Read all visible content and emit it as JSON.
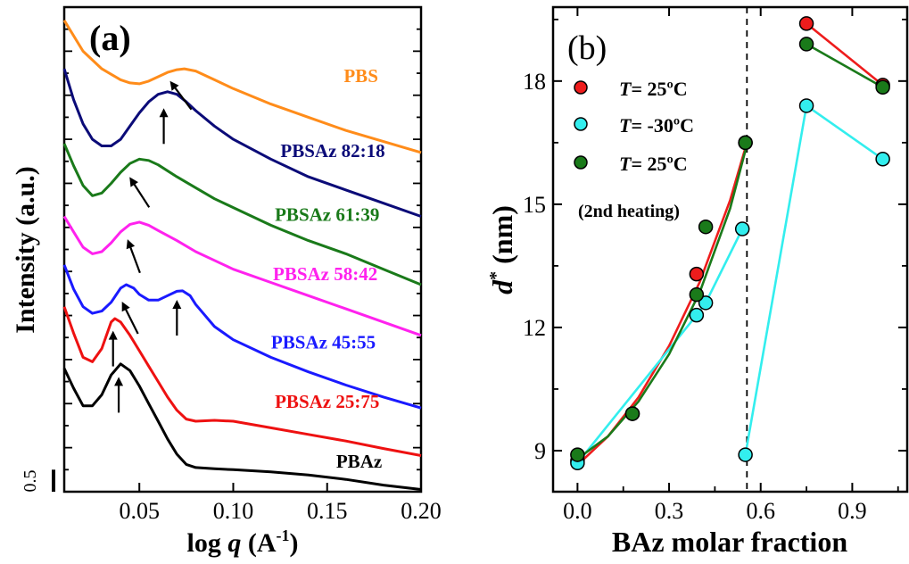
{
  "chart_data": [
    {
      "type": "line",
      "panel_label": "(a)",
      "xlabel_main": "log ",
      "xlabel_var": "q",
      "xlabel_unit": " (A",
      "xlabel_sup": "-1",
      "xlabel_close": ")",
      "ylabel": "Intensity (a.u.)",
      "xlim": [
        0.01,
        0.2
      ],
      "ylim": [
        0,
        11
      ],
      "xticks": [
        "0.05",
        "0.10",
        "0.15",
        "0.20"
      ],
      "xtick_values": [
        0.05,
        0.1,
        0.15,
        0.2
      ],
      "scale_bar_label": "0.5",
      "scale_bar_value": 0.5,
      "series": [
        {
          "name": "PBS",
          "color": "#ff8c1a",
          "x": [
            0.01,
            0.02,
            0.03,
            0.04,
            0.045,
            0.05,
            0.055,
            0.06,
            0.065,
            0.07,
            0.074,
            0.08,
            0.09,
            0.1,
            0.12,
            0.14,
            0.16,
            0.18,
            0.2
          ],
          "y": [
            10.7,
            10.0,
            9.6,
            9.35,
            9.28,
            9.26,
            9.32,
            9.42,
            9.52,
            9.58,
            9.6,
            9.55,
            9.35,
            9.15,
            8.8,
            8.5,
            8.2,
            7.95,
            7.7
          ]
        },
        {
          "name": "PBSAz 82:18",
          "color": "#0b0b78",
          "x": [
            0.01,
            0.015,
            0.02,
            0.025,
            0.03,
            0.035,
            0.04,
            0.045,
            0.05,
            0.055,
            0.06,
            0.065,
            0.07,
            0.075,
            0.08,
            0.09,
            0.1,
            0.12,
            0.14,
            0.16,
            0.18,
            0.2
          ],
          "y": [
            9.6,
            8.9,
            8.35,
            8.0,
            7.85,
            7.85,
            8.0,
            8.3,
            8.6,
            8.85,
            9.02,
            9.08,
            9.02,
            8.85,
            8.65,
            8.3,
            8.0,
            7.55,
            7.15,
            6.85,
            6.55,
            6.25
          ]
        },
        {
          "name": "PBSAz 61:39",
          "color": "#1a7a1a",
          "x": [
            0.01,
            0.015,
            0.02,
            0.025,
            0.03,
            0.035,
            0.04,
            0.045,
            0.05,
            0.055,
            0.06,
            0.07,
            0.08,
            0.09,
            0.1,
            0.12,
            0.14,
            0.16,
            0.18,
            0.2
          ],
          "y": [
            7.9,
            7.4,
            6.95,
            6.72,
            6.78,
            7.0,
            7.25,
            7.45,
            7.55,
            7.52,
            7.42,
            7.15,
            6.9,
            6.65,
            6.45,
            6.05,
            5.7,
            5.4,
            5.05,
            4.7
          ]
        },
        {
          "name": "PBSAz 58:42",
          "color": "#ff22ee",
          "x": [
            0.01,
            0.015,
            0.02,
            0.025,
            0.03,
            0.035,
            0.04,
            0.045,
            0.05,
            0.055,
            0.06,
            0.07,
            0.08,
            0.09,
            0.1,
            0.12,
            0.14,
            0.16,
            0.18,
            0.2
          ],
          "y": [
            6.25,
            5.9,
            5.55,
            5.4,
            5.45,
            5.65,
            5.9,
            6.07,
            6.12,
            6.05,
            5.93,
            5.7,
            5.45,
            5.25,
            5.05,
            4.75,
            4.45,
            4.15,
            3.85,
            3.55
          ]
        },
        {
          "name": "PBSAz 45:55",
          "color": "#1a1aff",
          "x": [
            0.01,
            0.015,
            0.02,
            0.025,
            0.03,
            0.035,
            0.04,
            0.043,
            0.047,
            0.05,
            0.055,
            0.06,
            0.065,
            0.07,
            0.073,
            0.077,
            0.08,
            0.09,
            0.1,
            0.12,
            0.14,
            0.16,
            0.18,
            0.2
          ],
          "y": [
            5.15,
            4.6,
            4.2,
            4.05,
            4.1,
            4.3,
            4.62,
            4.7,
            4.62,
            4.48,
            4.35,
            4.35,
            4.45,
            4.55,
            4.56,
            4.45,
            4.25,
            3.75,
            3.45,
            3.05,
            2.72,
            2.42,
            2.15,
            1.9
          ]
        },
        {
          "name": "PBSAz 25:75",
          "color": "#ee1111",
          "x": [
            0.01,
            0.015,
            0.02,
            0.025,
            0.03,
            0.035,
            0.037,
            0.04,
            0.045,
            0.05,
            0.055,
            0.06,
            0.065,
            0.07,
            0.075,
            0.08,
            0.09,
            0.1,
            0.12,
            0.14,
            0.16,
            0.18,
            0.2
          ],
          "y": [
            4.2,
            3.6,
            3.05,
            2.95,
            3.25,
            3.85,
            3.93,
            3.85,
            3.55,
            3.2,
            2.85,
            2.5,
            2.15,
            1.85,
            1.65,
            1.6,
            1.62,
            1.6,
            1.45,
            1.3,
            1.15,
            0.98,
            0.82
          ]
        },
        {
          "name": "PBAz",
          "color": "#000000",
          "x": [
            0.01,
            0.015,
            0.02,
            0.025,
            0.03,
            0.035,
            0.04,
            0.045,
            0.05,
            0.055,
            0.06,
            0.065,
            0.07,
            0.075,
            0.08,
            0.09,
            0.1,
            0.12,
            0.14,
            0.16,
            0.18,
            0.2
          ],
          "y": [
            2.8,
            2.35,
            1.95,
            1.95,
            2.2,
            2.65,
            2.9,
            2.75,
            2.4,
            2.0,
            1.6,
            1.2,
            0.85,
            0.62,
            0.55,
            0.52,
            0.5,
            0.45,
            0.38,
            0.28,
            0.15,
            0.05
          ]
        }
      ],
      "labels": [
        "PBS",
        "PBSAz 82:18",
        "PBSAz 61:39",
        "PBSAz 58:42",
        "PBSAz 45:55",
        "PBSAz 25:75",
        "PBAz"
      ],
      "arrows": [
        {
          "x": 0.072,
          "y": 9.0
        },
        {
          "x": 0.063,
          "y": 8.3
        },
        {
          "x": 0.05,
          "y": 6.8
        },
        {
          "x": 0.047,
          "y": 5.35
        },
        {
          "x": 0.045,
          "y": 3.95
        },
        {
          "x": 0.07,
          "y": 3.95
        },
        {
          "x": 0.036,
          "y": 3.25
        },
        {
          "x": 0.039,
          "y": 2.2
        }
      ]
    },
    {
      "type": "scatter",
      "panel_label": "(b)",
      "xlabel": "BAz molar fraction",
      "ylabel_var": "d",
      "ylabel_sup": "*",
      "ylabel_unit": " (nm)",
      "xlim": [
        -0.08,
        1.08
      ],
      "ylim": [
        8.0,
        19.8
      ],
      "xticks": [
        "0.0",
        "0.3",
        "0.6",
        "0.9"
      ],
      "xtick_values": [
        0.0,
        0.3,
        0.6,
        0.9
      ],
      "yticks": [
        "9",
        "12",
        "15",
        "18"
      ],
      "ytick_values": [
        9,
        12,
        15,
        18
      ],
      "divider_x": 0.555,
      "legend": [
        {
          "var": "T",
          "text": "= 25ºC",
          "color": "#ee1c1c"
        },
        {
          "var": "T",
          "text": "= -30ºC",
          "color": "#33eeee"
        },
        {
          "var": "T",
          "text": "= 25ºC",
          "color": "#1a7a1a"
        }
      ],
      "legend_note": "(2nd heating)",
      "series": [
        {
          "name": "T= 25ºC",
          "color": "#ee1c1c",
          "points": [
            [
              0.0,
              8.75
            ],
            [
              0.18,
              9.9
            ],
            [
              0.39,
              13.3
            ],
            [
              0.55,
              16.5
            ],
            [
              0.75,
              19.4
            ],
            [
              1.0,
              17.9
            ]
          ],
          "fit": [
            [
              0.0,
              8.65
            ],
            [
              0.1,
              9.35
            ],
            [
              0.2,
              10.3
            ],
            [
              0.3,
              11.55
            ],
            [
              0.4,
              13.1
            ],
            [
              0.5,
              15.1
            ],
            [
              0.555,
              16.5
            ]
          ],
          "line": [
            [
              0.75,
              19.4
            ],
            [
              1.0,
              17.9
            ]
          ]
        },
        {
          "name": "T= -30ºC",
          "color": "#33eeee",
          "points": [
            [
              0.0,
              8.7
            ],
            [
              0.39,
              12.3
            ],
            [
              0.42,
              12.6
            ],
            [
              0.54,
              14.4
            ],
            [
              0.55,
              8.9
            ],
            [
              0.75,
              17.4
            ],
            [
              1.0,
              16.1
            ]
          ],
          "line": [
            [
              0.0,
              8.7
            ],
            [
              0.39,
              12.3
            ],
            [
              0.42,
              12.6
            ],
            [
              0.54,
              14.4
            ]
          ],
          "line2": [
            [
              0.55,
              8.9
            ],
            [
              0.75,
              17.4
            ],
            [
              1.0,
              16.1
            ]
          ]
        },
        {
          "name": "T= 25ºC (2nd heating)",
          "color": "#1a7a1a",
          "points": [
            [
              0.0,
              8.9
            ],
            [
              0.18,
              9.9
            ],
            [
              0.39,
              12.8
            ],
            [
              0.42,
              14.45
            ],
            [
              0.55,
              16.5
            ],
            [
              0.75,
              18.9
            ],
            [
              1.0,
              17.85
            ]
          ],
          "fit": [
            [
              0.0,
              8.8
            ],
            [
              0.1,
              9.35
            ],
            [
              0.2,
              10.2
            ],
            [
              0.3,
              11.35
            ],
            [
              0.4,
              12.85
            ],
            [
              0.5,
              14.9
            ],
            [
              0.555,
              16.45
            ]
          ],
          "line": [
            [
              0.75,
              18.9
            ],
            [
              1.0,
              17.85
            ]
          ]
        }
      ]
    }
  ]
}
